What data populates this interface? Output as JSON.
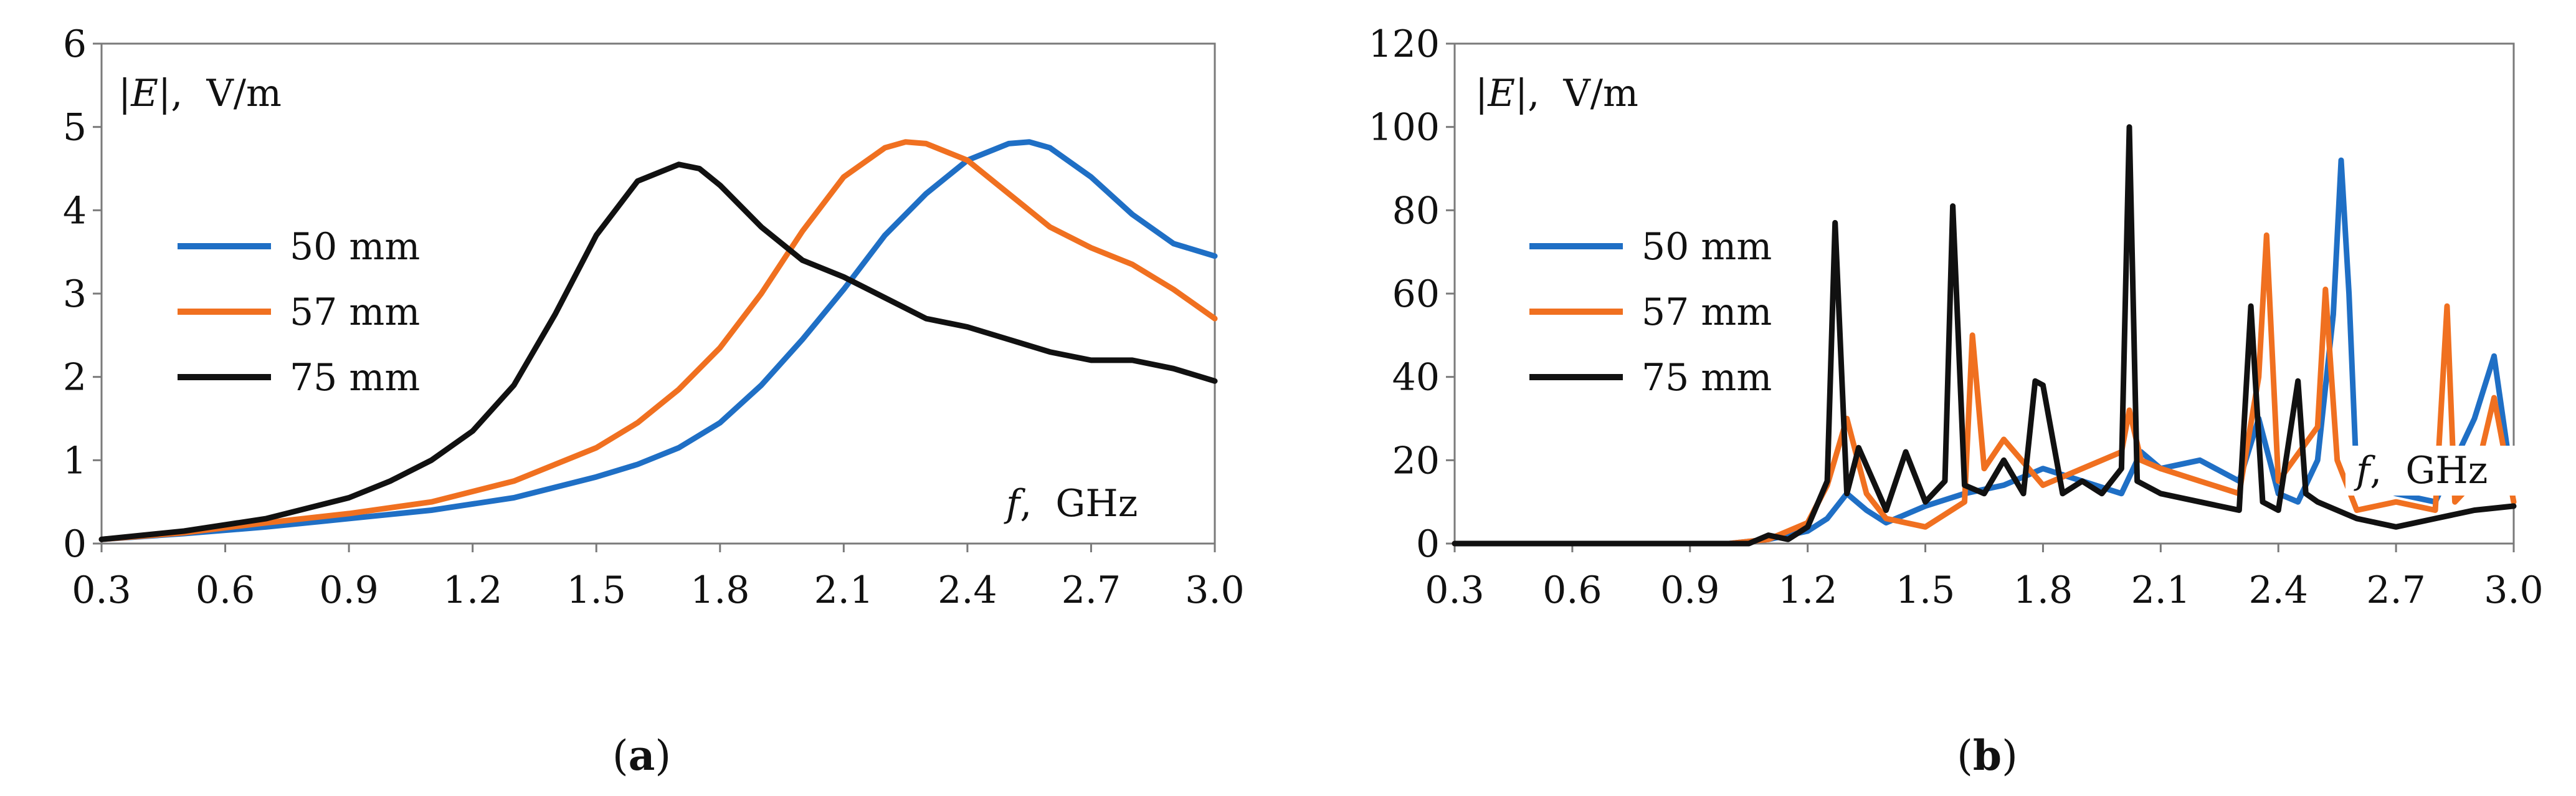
{
  "figure": {
    "captions": [
      {
        "open": "(",
        "letter": "a",
        "close": ")"
      },
      {
        "open": "(",
        "letter": "b",
        "close": ")"
      }
    ]
  },
  "chart_data": [
    {
      "type": "line",
      "panel": "a",
      "ylabel_prefix": "|",
      "ylabel_var": "E",
      "ylabel_suffix": "|,  V/m",
      "xlabel_var": "f",
      "xlabel_suffix": ",  GHz",
      "xlim": [
        0.3,
        3.0
      ],
      "ylim": [
        0,
        6
      ],
      "xticks": [
        "0.3",
        "0.6",
        "0.9",
        "1.2",
        "1.5",
        "1.8",
        "2.1",
        "2.4",
        "2.7",
        "3.0"
      ],
      "yticks": [
        "0",
        "1",
        "2",
        "3",
        "4",
        "5",
        "6"
      ],
      "legend_position": "center-left",
      "series": [
        {
          "name": "50 mm",
          "color": "#1f6fc5",
          "x": [
            0.3,
            0.5,
            0.7,
            0.9,
            1.1,
            1.3,
            1.5,
            1.6,
            1.7,
            1.8,
            1.9,
            2.0,
            2.1,
            2.2,
            2.3,
            2.4,
            2.5,
            2.55,
            2.6,
            2.7,
            2.8,
            2.9,
            3.0
          ],
          "y": [
            0.05,
            0.12,
            0.2,
            0.3,
            0.4,
            0.55,
            0.8,
            0.95,
            1.15,
            1.45,
            1.9,
            2.45,
            3.05,
            3.7,
            4.2,
            4.6,
            4.8,
            4.82,
            4.75,
            4.4,
            3.95,
            3.6,
            3.45
          ]
        },
        {
          "name": "57 mm",
          "color": "#f07020",
          "x": [
            0.3,
            0.5,
            0.7,
            0.9,
            1.1,
            1.3,
            1.5,
            1.6,
            1.7,
            1.8,
            1.9,
            2.0,
            2.1,
            2.2,
            2.25,
            2.3,
            2.4,
            2.5,
            2.6,
            2.7,
            2.8,
            2.9,
            3.0
          ],
          "y": [
            0.05,
            0.13,
            0.25,
            0.36,
            0.5,
            0.75,
            1.15,
            1.45,
            1.85,
            2.35,
            3.0,
            3.75,
            4.4,
            4.75,
            4.82,
            4.8,
            4.6,
            4.2,
            3.8,
            3.55,
            3.35,
            3.05,
            2.7
          ]
        },
        {
          "name": "75 mm",
          "color": "#111111",
          "x": [
            0.3,
            0.5,
            0.7,
            0.9,
            1.0,
            1.1,
            1.2,
            1.3,
            1.4,
            1.5,
            1.6,
            1.7,
            1.75,
            1.8,
            1.9,
            2.0,
            2.1,
            2.2,
            2.3,
            2.4,
            2.5,
            2.6,
            2.7,
            2.8,
            2.9,
            3.0
          ],
          "y": [
            0.05,
            0.15,
            0.3,
            0.55,
            0.75,
            1.0,
            1.35,
            1.9,
            2.75,
            3.7,
            4.35,
            4.55,
            4.5,
            4.3,
            3.8,
            3.4,
            3.2,
            2.95,
            2.7,
            2.6,
            2.45,
            2.3,
            2.2,
            2.2,
            2.1,
            1.95
          ]
        }
      ]
    },
    {
      "type": "line",
      "panel": "b",
      "ylabel_prefix": "|",
      "ylabel_var": "E",
      "ylabel_suffix": "|,  V/m",
      "xlabel_var": "f",
      "xlabel_suffix": ",  GHz",
      "xlim": [
        0.3,
        3.0
      ],
      "ylim": [
        0,
        120
      ],
      "xticks": [
        "0.3",
        "0.6",
        "0.9",
        "1.2",
        "1.5",
        "1.8",
        "2.1",
        "2.4",
        "2.7",
        "3.0"
      ],
      "yticks": [
        "0",
        "20",
        "40",
        "60",
        "80",
        "100",
        "120"
      ],
      "legend_position": "center-left",
      "series": [
        {
          "name": "50 mm",
          "color": "#1f6fc5",
          "x": [
            0.3,
            1.0,
            1.1,
            1.2,
            1.25,
            1.3,
            1.35,
            1.4,
            1.5,
            1.6,
            1.7,
            1.8,
            1.9,
            2.0,
            2.05,
            2.1,
            2.2,
            2.3,
            2.35,
            2.4,
            2.45,
            2.5,
            2.54,
            2.56,
            2.58,
            2.6,
            2.7,
            2.8,
            2.9,
            2.95,
            3.0
          ],
          "y": [
            0,
            0,
            1,
            3,
            6,
            12,
            8,
            5,
            9,
            12,
            14,
            18,
            15,
            12,
            22,
            18,
            20,
            15,
            30,
            12,
            10,
            20,
            55,
            92,
            60,
            15,
            12,
            10,
            30,
            45,
            12
          ]
        },
        {
          "name": "57 mm",
          "color": "#f07020",
          "x": [
            0.3,
            1.0,
            1.1,
            1.2,
            1.25,
            1.3,
            1.35,
            1.4,
            1.5,
            1.6,
            1.62,
            1.65,
            1.7,
            1.8,
            1.9,
            2.0,
            2.02,
            2.05,
            2.1,
            2.2,
            2.3,
            2.35,
            2.37,
            2.4,
            2.5,
            2.52,
            2.55,
            2.6,
            2.7,
            2.8,
            2.83,
            2.85,
            2.9,
            2.95,
            3.0
          ],
          "y": [
            0,
            0,
            1,
            5,
            14,
            30,
            12,
            6,
            4,
            10,
            50,
            18,
            25,
            14,
            18,
            22,
            32,
            20,
            18,
            15,
            12,
            40,
            74,
            15,
            28,
            61,
            20,
            8,
            10,
            8,
            57,
            10,
            15,
            35,
            10
          ]
        },
        {
          "name": "75 mm",
          "color": "#111111",
          "x": [
            0.3,
            1.05,
            1.1,
            1.15,
            1.2,
            1.25,
            1.27,
            1.3,
            1.33,
            1.4,
            1.45,
            1.5,
            1.55,
            1.57,
            1.6,
            1.65,
            1.7,
            1.75,
            1.78,
            1.8,
            1.85,
            1.9,
            1.95,
            2.0,
            2.02,
            2.04,
            2.1,
            2.2,
            2.3,
            2.33,
            2.36,
            2.4,
            2.45,
            2.47,
            2.5,
            2.6,
            2.7,
            2.8,
            2.9,
            3.0
          ],
          "y": [
            0,
            0,
            2,
            1,
            4,
            15,
            77,
            12,
            23,
            8,
            22,
            10,
            15,
            81,
            14,
            12,
            20,
            12,
            39,
            38,
            12,
            15,
            12,
            18,
            100,
            15,
            12,
            10,
            8,
            57,
            10,
            8,
            39,
            12,
            10,
            6,
            4,
            6,
            8,
            9
          ]
        }
      ]
    }
  ]
}
